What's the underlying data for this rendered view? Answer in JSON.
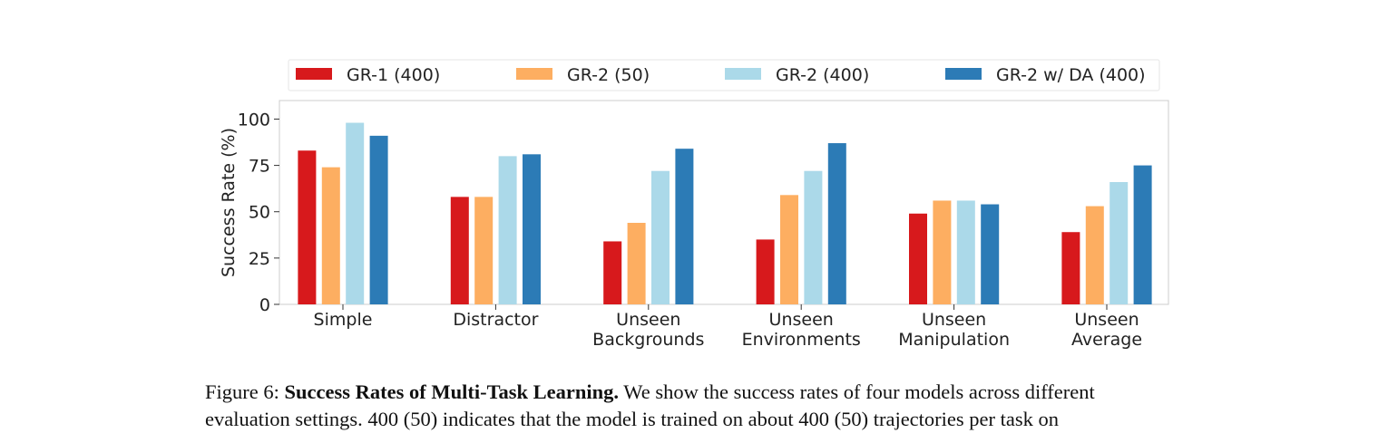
{
  "chart_data": {
    "type": "bar",
    "title": "",
    "xlabel": "",
    "ylabel": "Success Rate (%)",
    "ylim": [
      0,
      110
    ],
    "yticks": [
      0,
      25,
      50,
      75,
      100
    ],
    "grid": false,
    "legend_position": "top",
    "categories": [
      [
        "Simple"
      ],
      [
        "Distractor"
      ],
      [
        "Unseen",
        "Backgrounds"
      ],
      [
        "Unseen",
        "Environments"
      ],
      [
        "Unseen",
        "Manipulation"
      ],
      [
        "Unseen",
        "Average"
      ]
    ],
    "series": [
      {
        "name": "GR-1 (400)",
        "color": "#d7191c",
        "values": [
          83,
          58,
          34,
          35,
          49,
          39
        ]
      },
      {
        "name": "GR-2 (50)",
        "color": "#fdae61",
        "values": [
          74,
          58,
          44,
          59,
          56,
          53
        ]
      },
      {
        "name": "GR-2 (400)",
        "color": "#abd9e9",
        "values": [
          98,
          80,
          72,
          72,
          56,
          66
        ]
      },
      {
        "name": "GR-2 w/ DA (400)",
        "color": "#2c7bb6",
        "values": [
          91,
          81,
          84,
          87,
          54,
          75
        ]
      }
    ]
  },
  "caption": {
    "label": "Figure 6:",
    "title": "Success Rates of Multi-Task Learning.",
    "text": "We show the success rates of four models across different",
    "line2": "evaluation settings. 400 (50) indicates that the model is trained on about 400 (50) trajectories per task on"
  }
}
